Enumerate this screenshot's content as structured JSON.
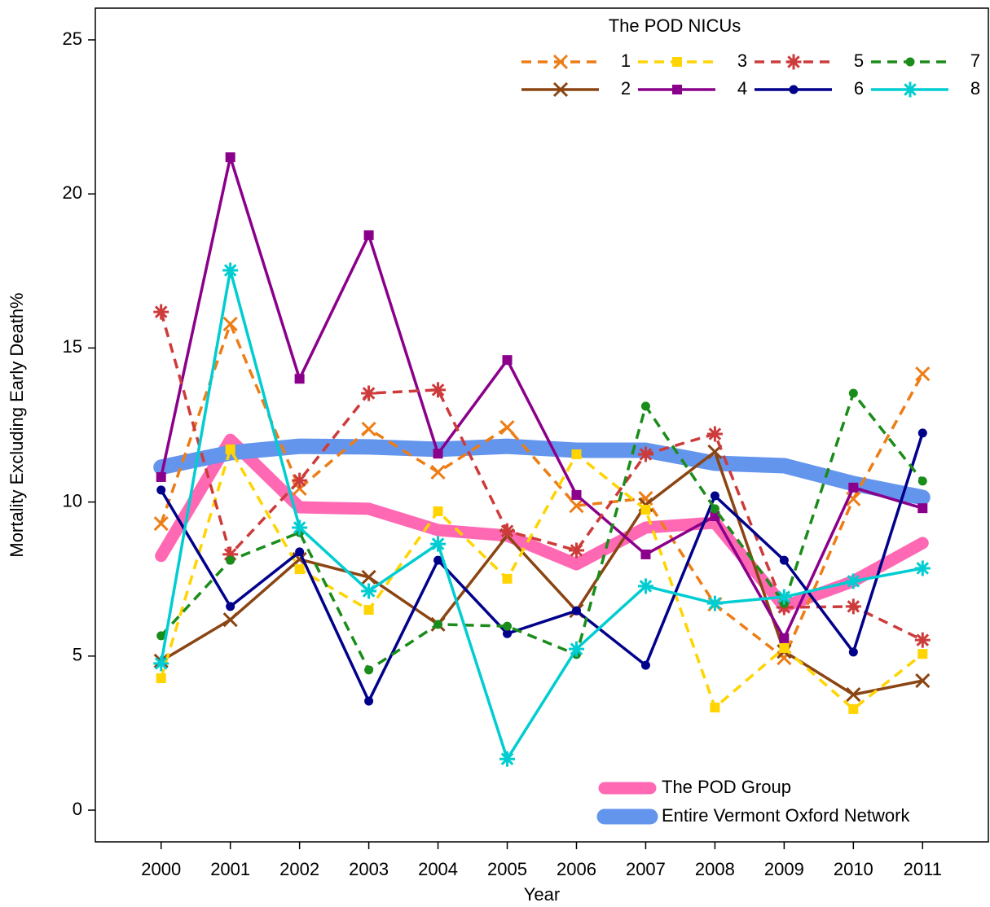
{
  "chart_data": {
    "type": "line",
    "xlabel": "Year",
    "ylabel": "Mortality Excluding Early Death%",
    "legend_title": "The POD NICUs",
    "x": [
      2000,
      2001,
      2002,
      2003,
      2004,
      2005,
      2006,
      2007,
      2008,
      2009,
      2010,
      2011
    ],
    "xlim": [
      1999.05,
      2011.95
    ],
    "xticks": [
      2000,
      2001,
      2002,
      2003,
      2004,
      2005,
      2006,
      2007,
      2008,
      2009,
      2010,
      2011
    ],
    "ylim": [
      -1.03,
      26.03
    ],
    "yticks": [
      0,
      5,
      10,
      15,
      20,
      25
    ],
    "series": [
      {
        "name": "1",
        "color": "#ed7d16",
        "dashed": true,
        "marker": "x",
        "values": [
          9.3,
          15.78,
          10.44,
          12.37,
          10.97,
          12.42,
          9.88,
          10.12,
          6.68,
          4.94,
          10.1,
          14.16
        ]
      },
      {
        "name": "2",
        "color": "#8b4513",
        "dashed": false,
        "marker": "x",
        "values": [
          4.84,
          6.18,
          8.14,
          7.56,
          6.03,
          8.91,
          6.47,
          9.91,
          11.63,
          5.15,
          3.75,
          4.2
        ]
      },
      {
        "name": "3",
        "color": "#ffd400",
        "dashed": true,
        "marker": "square",
        "values": [
          4.28,
          11.71,
          7.82,
          6.5,
          9.7,
          7.51,
          11.55,
          9.75,
          3.33,
          5.26,
          3.28,
          5.07
        ]
      },
      {
        "name": "4",
        "color": "#8b008b",
        "dashed": false,
        "marker": "square",
        "values": [
          10.81,
          21.19,
          14.0,
          18.66,
          11.57,
          14.61,
          10.23,
          8.3,
          9.54,
          5.58,
          10.47,
          9.8
        ]
      },
      {
        "name": "5",
        "color": "#cd3b3b",
        "dashed": true,
        "marker": "star",
        "values": [
          16.17,
          8.3,
          10.7,
          13.53,
          13.64,
          9.06,
          8.43,
          11.55,
          12.21,
          6.58,
          6.61,
          5.52
        ]
      },
      {
        "name": "6",
        "color": "#00008b",
        "dashed": false,
        "marker": "circle",
        "values": [
          10.39,
          6.61,
          8.38,
          3.54,
          8.11,
          5.73,
          6.47,
          4.7,
          10.2,
          8.11,
          5.13,
          12.24
        ]
      },
      {
        "name": "7",
        "color": "#1a8c1a",
        "dashed": true,
        "marker": "circle",
        "values": [
          5.66,
          8.11,
          9.01,
          4.55,
          6.03,
          5.97,
          5.05,
          13.11,
          9.78,
          6.71,
          13.53,
          10.68
        ]
      },
      {
        "name": "8",
        "color": "#00cdd1",
        "dashed": false,
        "marker": "star",
        "values": [
          4.76,
          17.52,
          9.17,
          7.11,
          8.64,
          1.66,
          5.23,
          7.27,
          6.71,
          6.92,
          7.43,
          7.85
        ]
      }
    ],
    "summary_series": [
      {
        "name": "The POD Group",
        "color": "#ff69b4",
        "values": [
          8.25,
          12.02,
          9.83,
          9.78,
          9.09,
          8.91,
          7.98,
          9.17,
          9.33,
          6.61,
          7.43,
          8.67
        ]
      },
      {
        "name": "Entire Vermont Oxford Network",
        "color": "#6495ed",
        "values": [
          11.13,
          11.6,
          11.81,
          11.79,
          11.71,
          11.81,
          11.68,
          11.68,
          11.26,
          11.18,
          10.6,
          10.15
        ]
      }
    ]
  }
}
